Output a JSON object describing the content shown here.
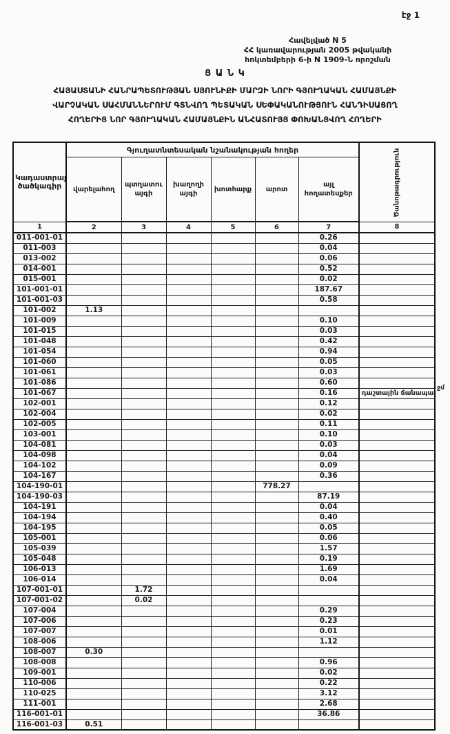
{
  "page": {
    "page_label": "էջ 1"
  },
  "header": {
    "appendix_lines": [
      "Հավելված N 5",
      "ՀՀ կառավարության 2005 թվականի",
      "հոկտեմբերի 6-ի N 1909-Ն որոշման"
    ]
  },
  "title": {
    "heading": "Ց Ա Ն Կ",
    "lines": [
      "ՀԱՅԱՍՏԱՆԻ ՀԱՆՐԱՊԵՏՈՒԹՅԱՆ ՍՅՈՒՆԻՔԻ ՄԱՐԶԻ ՆՈՐԻ ԳՅՈՒՂԱԿԱՆ ՀԱՄԱՅՆՔԻ",
      "ՎԱՐՉԱԿԱՆ ՍԱՀՄԱՆՆԵՐՈՒՄ ԳՏՆՎՈՂ ՊԵՏԱԿԱՆ ՍԵՓԱԿԱՆՈՒԹՅՈՒՆ ՀԱՆԴԻՍԱՑՈՂ",
      "ՀՈՂԵՐԻՑ ՆՈՐ ԳՅՈՒՂԱԿԱՆ ՀԱՄԱՅՆՔԻՆ ԱՆՀԱՏՈՒՅՑ ՓՈԽԱՆՑՎՈՂ ՀՈՂԵՐԻ"
    ]
  },
  "table": {
    "col1_header": "Կադաստրային ծածկագիր",
    "group_header": "Գյուղատնտեսական նշանակության հողեր",
    "col8_header": "Ծանոթագրություն",
    "sub_headers": [
      "վարելահող",
      "պտղատու այգի",
      "խաղողի այգի",
      "խոտհարք",
      "արոտ",
      "այլ հողատեսքեր"
    ],
    "number_row": [
      "1",
      "2",
      "3",
      "4",
      "5",
      "6",
      "7",
      "8"
    ],
    "rows": [
      {
        "code": "011-001-01",
        "values": [
          "",
          "",
          "",
          "",
          "",
          "0.26"
        ],
        "note": ""
      },
      {
        "code": "011-003",
        "values": [
          "",
          "",
          "",
          "",
          "",
          "0.04"
        ],
        "note": ""
      },
      {
        "code": "013-002",
        "values": [
          "",
          "",
          "",
          "",
          "",
          "0.06"
        ],
        "note": ""
      },
      {
        "code": "014-001",
        "values": [
          "",
          "",
          "",
          "",
          "",
          "0.52"
        ],
        "note": ""
      },
      {
        "code": "015-001",
        "values": [
          "",
          "",
          "",
          "",
          "",
          "0.02"
        ],
        "note": ""
      },
      {
        "code": "101-001-01",
        "values": [
          "",
          "",
          "",
          "",
          "",
          "187.67"
        ],
        "note": ""
      },
      {
        "code": "101-001-03",
        "values": [
          "",
          "",
          "",
          "",
          "",
          "0.58"
        ],
        "note": ""
      },
      {
        "code": "101-002",
        "values": [
          "1.13",
          "",
          "",
          "",
          "",
          ""
        ],
        "note": ""
      },
      {
        "code": "101-009",
        "values": [
          "",
          "",
          "",
          "",
          "",
          "0.10"
        ],
        "note": ""
      },
      {
        "code": "101-015",
        "values": [
          "",
          "",
          "",
          "",
          "",
          "0.03"
        ],
        "note": ""
      },
      {
        "code": "101-048",
        "values": [
          "",
          "",
          "",
          "",
          "",
          "0.42"
        ],
        "note": ""
      },
      {
        "code": "101-054",
        "values": [
          "",
          "",
          "",
          "",
          "",
          "0.94"
        ],
        "note": ""
      },
      {
        "code": "101-060",
        "values": [
          "",
          "",
          "",
          "",
          "",
          "0.05"
        ],
        "note": ""
      },
      {
        "code": "101-061",
        "values": [
          "",
          "",
          "",
          "",
          "",
          "0.03"
        ],
        "note": ""
      },
      {
        "code": "101-086",
        "values": [
          "",
          "",
          "",
          "",
          "",
          "0.60"
        ],
        "note": ""
      },
      {
        "code": "101-067",
        "values": [
          "",
          "",
          "",
          "",
          "",
          "0.16"
        ],
        "note": "դաշտային ճանապարհ"
      },
      {
        "code": "102-001",
        "values": [
          "",
          "",
          "",
          "",
          "",
          "0.12"
        ],
        "note": ""
      },
      {
        "code": "102-004",
        "values": [
          "",
          "",
          "",
          "",
          "",
          "0.02"
        ],
        "note": ""
      },
      {
        "code": "102-005",
        "values": [
          "",
          "",
          "",
          "",
          "",
          "0.11"
        ],
        "note": ""
      },
      {
        "code": "103-001",
        "values": [
          "",
          "",
          "",
          "",
          "",
          "0.10"
        ],
        "note": ""
      },
      {
        "code": "104-081",
        "values": [
          "",
          "",
          "",
          "",
          "",
          "0.03"
        ],
        "note": ""
      },
      {
        "code": "104-098",
        "values": [
          "",
          "",
          "",
          "",
          "",
          "0.04"
        ],
        "note": ""
      },
      {
        "code": "104-102",
        "values": [
          "",
          "",
          "",
          "",
          "",
          "0.09"
        ],
        "note": ""
      },
      {
        "code": "104-167",
        "values": [
          "",
          "",
          "",
          "",
          "",
          "0.36"
        ],
        "note": ""
      },
      {
        "code": "104-190-01",
        "values": [
          "",
          "",
          "",
          "",
          "778.27",
          ""
        ],
        "note": ""
      },
      {
        "code": "104-190-03",
        "values": [
          "",
          "",
          "",
          "",
          "",
          "87.19"
        ],
        "note": ""
      },
      {
        "code": "104-191",
        "values": [
          "",
          "",
          "",
          "",
          "",
          "0.04"
        ],
        "note": ""
      },
      {
        "code": "104-194",
        "values": [
          "",
          "",
          "",
          "",
          "",
          "0.40"
        ],
        "note": ""
      },
      {
        "code": "104-195",
        "values": [
          "",
          "",
          "",
          "",
          "",
          "0.05"
        ],
        "note": ""
      },
      {
        "code": "105-001",
        "values": [
          "",
          "",
          "",
          "",
          "",
          "0.06"
        ],
        "note": ""
      },
      {
        "code": "105-039",
        "values": [
          "",
          "",
          "",
          "",
          "",
          "1.57"
        ],
        "note": ""
      },
      {
        "code": "105-048",
        "values": [
          "",
          "",
          "",
          "",
          "",
          "0.19"
        ],
        "note": ""
      },
      {
        "code": "106-013",
        "values": [
          "",
          "",
          "",
          "",
          "",
          "1.69"
        ],
        "note": ""
      },
      {
        "code": "106-014",
        "values": [
          "",
          "",
          "",
          "",
          "",
          "0.04"
        ],
        "note": ""
      },
      {
        "code": "107-001-01",
        "values": [
          "",
          "1.72",
          "",
          "",
          "",
          ""
        ],
        "note": ""
      },
      {
        "code": "107-001-02",
        "values": [
          "",
          "0.02",
          "",
          "",
          "",
          ""
        ],
        "note": ""
      },
      {
        "code": "107-004",
        "values": [
          "",
          "",
          "",
          "",
          "",
          "0.29"
        ],
        "note": ""
      },
      {
        "code": "107-006",
        "values": [
          "",
          "",
          "",
          "",
          "",
          "0.23"
        ],
        "note": ""
      },
      {
        "code": "107-007",
        "values": [
          "",
          "",
          "",
          "",
          "",
          "0.01"
        ],
        "note": ""
      },
      {
        "code": "108-006",
        "values": [
          "",
          "",
          "",
          "",
          "",
          "1.12"
        ],
        "note": ""
      },
      {
        "code": "108-007",
        "values": [
          "0.30",
          "",
          "",
          "",
          "",
          ""
        ],
        "note": ""
      },
      {
        "code": "108-008",
        "values": [
          "",
          "",
          "",
          "",
          "",
          "0.96"
        ],
        "note": ""
      },
      {
        "code": "109-001",
        "values": [
          "",
          "",
          "",
          "",
          "",
          "0.02"
        ],
        "note": ""
      },
      {
        "code": "110-006",
        "values": [
          "",
          "",
          "",
          "",
          "",
          "0.22"
        ],
        "note": ""
      },
      {
        "code": "110-025",
        "values": [
          "",
          "",
          "",
          "",
          "",
          "3.12"
        ],
        "note": ""
      },
      {
        "code": "111-001",
        "values": [
          "",
          "",
          "",
          "",
          "",
          "2.68"
        ],
        "note": ""
      },
      {
        "code": "116-001-01",
        "values": [
          "",
          "",
          "",
          "",
          "",
          "36.86"
        ],
        "note": ""
      },
      {
        "code": "116-001-03",
        "values": [
          "0.51",
          "",
          "",
          "",
          "",
          ""
        ],
        "note": ""
      }
    ]
  },
  "margin_note": "ջմ"
}
